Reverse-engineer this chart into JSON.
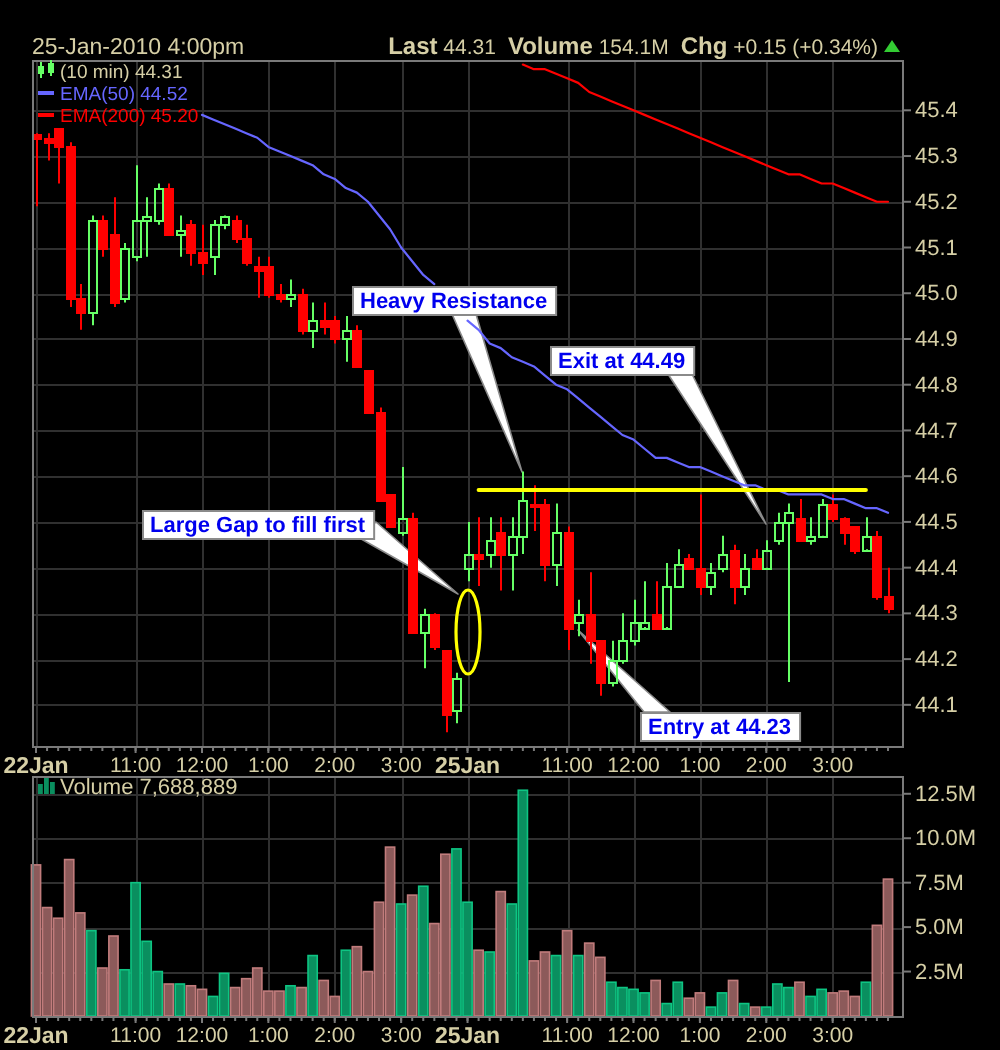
{
  "chart_data": [
    {
      "type": "candlestick",
      "subtitle": "25-Jan-2010 4:00pm",
      "annotations": [
        "Last 44.31",
        "Volume 154.1M",
        "Chg +0.15 (+0.34%)",
        "Heavy Resistance",
        "Exit at 44.49",
        "Large Gap to fill first",
        "Entry at 44.23"
      ],
      "categories": [
        "22Jan",
        null,
        null,
        null,
        null,
        null,
        null,
        null,
        null,
        "11:00",
        null,
        null,
        null,
        null,
        null,
        "12:00",
        null,
        null,
        null,
        null,
        null,
        "1:00",
        null,
        null,
        null,
        null,
        null,
        "2:00",
        null,
        null,
        null,
        null,
        null,
        "3:00",
        null,
        null,
        null,
        null,
        null,
        "25Jan",
        null,
        null,
        null,
        null,
        null,
        null,
        null,
        null,
        "11:00",
        null,
        null,
        null,
        null,
        null,
        "12:00",
        null,
        null,
        null,
        null,
        null,
        "1:00",
        null,
        null,
        null,
        null,
        null,
        "2:00",
        null,
        null,
        null,
        null,
        null,
        "3:00",
        null,
        null,
        null,
        null,
        null
      ],
      "ylim": [
        44.01,
        45.51
      ],
      "yticks": [
        44.1,
        44.2,
        44.3,
        44.4,
        44.5,
        44.6,
        44.7,
        44.8,
        44.9,
        {
          "value": 45,
          "label": "45.0"
        },
        45.1,
        45.2,
        45.3,
        45.4
      ],
      "grid": true,
      "legend": "top left",
      "series": [
        {
          "name": "(10 min) 44.31",
          "ohlc": [
            [
              45.35,
              45.35,
              45.19,
              45.34
            ],
            [
              45.34,
              45.35,
              45.29,
              45.33
            ],
            [
              45.36,
              45.36,
              45.24,
              45.32
            ],
            [
              45.32,
              45.33,
              44.97,
              44.99
            ],
            [
              44.99,
              45.02,
              44.92,
              44.96
            ],
            [
              44.96,
              45.17,
              44.93,
              45.16
            ],
            [
              45.16,
              45.17,
              45.08,
              45.1
            ],
            [
              45.13,
              45.21,
              44.97,
              44.98
            ],
            [
              44.99,
              45.11,
              44.98,
              45.1
            ],
            [
              45.08,
              45.28,
              45.07,
              45.16
            ],
            [
              45.16,
              45.21,
              45.08,
              45.17
            ],
            [
              45.16,
              45.24,
              45.15,
              45.23
            ],
            [
              45.23,
              45.24,
              45.13,
              45.13
            ],
            [
              45.13,
              45.17,
              45.08,
              45.14
            ],
            [
              45.15,
              45.16,
              45.06,
              45.09
            ],
            [
              45.09,
              45.15,
              45.04,
              45.07
            ],
            [
              45.08,
              45.16,
              45.04,
              45.15
            ],
            [
              45.15,
              45.17,
              45.14,
              45.17
            ],
            [
              45.16,
              45.17,
              45.11,
              45.12
            ],
            [
              45.12,
              45.15,
              45.06,
              45.07
            ],
            [
              45.06,
              45.08,
              44.99,
              45.05
            ],
            [
              45.06,
              45.08,
              44.99,
              45.0
            ],
            [
              45.0,
              45.02,
              44.98,
              44.99
            ],
            [
              44.99,
              45.03,
              44.97,
              45.0
            ],
            [
              45.0,
              45.01,
              44.91,
              44.92
            ],
            [
              44.92,
              44.98,
              44.88,
              44.94
            ],
            [
              44.94,
              44.98,
              44.91,
              44.93
            ],
            [
              44.94,
              44.95,
              44.89,
              44.9
            ],
            [
              44.9,
              44.95,
              44.85,
              44.92
            ],
            [
              44.92,
              44.93,
              44.84,
              44.84
            ],
            [
              44.83,
              44.83,
              44.74,
              44.74
            ],
            [
              44.74,
              44.75,
              44.55,
              44.55
            ],
            [
              44.56,
              44.56,
              44.49,
              44.49
            ],
            [
              44.48,
              44.62,
              44.47,
              44.51
            ],
            [
              44.51,
              44.52,
              44.26,
              44.26
            ],
            [
              44.26,
              44.31,
              44.18,
              44.3
            ],
            [
              44.3,
              44.3,
              44.22,
              44.23
            ],
            [
              44.22,
              44.22,
              44.04,
              44.08
            ],
            [
              44.09,
              44.17,
              44.06,
              44.16
            ],
            [
              44.4,
              44.5,
              44.37,
              44.43
            ],
            [
              44.43,
              44.51,
              44.36,
              44.42
            ],
            [
              44.43,
              44.51,
              44.4,
              44.46
            ],
            [
              44.48,
              44.51,
              44.35,
              44.43
            ],
            [
              44.43,
              44.51,
              44.35,
              44.47
            ],
            [
              44.47,
              44.61,
              44.43,
              44.55
            ],
            [
              44.54,
              44.58,
              44.48,
              44.54
            ],
            [
              44.54,
              44.55,
              44.37,
              44.41
            ],
            [
              44.41,
              44.54,
              44.36,
              44.48
            ],
            [
              44.48,
              44.49,
              44.22,
              44.27
            ],
            [
              44.28,
              44.33,
              44.25,
              44.3
            ],
            [
              44.3,
              44.39,
              44.19,
              44.24
            ],
            [
              44.24,
              44.24,
              44.12,
              44.15
            ],
            [
              44.15,
              44.24,
              44.14,
              44.2
            ],
            [
              44.2,
              44.3,
              44.19,
              44.24
            ],
            [
              44.24,
              44.33,
              44.23,
              44.28
            ],
            [
              44.27,
              44.37,
              44.27,
              44.28
            ],
            [
              44.3,
              44.37,
              44.27,
              44.27
            ],
            [
              44.27,
              44.41,
              44.27,
              44.36
            ],
            [
              44.36,
              44.44,
              44.36,
              44.41
            ],
            [
              44.42,
              44.43,
              44.4,
              44.4
            ],
            [
              44.4,
              44.56,
              44.34,
              44.36
            ],
            [
              44.36,
              44.41,
              44.34,
              44.39
            ],
            [
              44.4,
              44.47,
              44.39,
              44.43
            ],
            [
              44.44,
              44.45,
              44.32,
              44.36
            ],
            [
              44.36,
              44.43,
              44.34,
              44.4
            ],
            [
              44.42,
              44.44,
              44.4,
              44.4
            ],
            [
              44.4,
              44.46,
              44.4,
              44.44
            ],
            [
              44.46,
              44.52,
              44.45,
              44.5
            ],
            [
              44.5,
              44.54,
              44.15,
              44.52
            ],
            [
              44.51,
              44.55,
              44.46,
              44.46
            ],
            [
              44.46,
              44.51,
              44.45,
              44.47
            ],
            [
              44.47,
              44.55,
              44.47,
              44.54
            ],
            [
              44.54,
              44.56,
              44.5,
              44.51
            ],
            [
              44.51,
              44.51,
              44.45,
              44.48
            ],
            [
              44.49,
              44.49,
              44.43,
              44.44
            ],
            [
              44.44,
              44.51,
              44.44,
              44.47
            ],
            [
              44.47,
              44.48,
              44.33,
              44.34
            ],
            [
              44.34,
              44.4,
              44.3,
              44.31
            ]
          ],
          "colors": [
            "#ff0000",
            "#ff0000",
            "#ff0000",
            "#ff0000",
            "#ff0000",
            "#66ff66",
            "#ff0000",
            "#ff0000",
            "#66ff66",
            "#66ff66",
            "#66ff66",
            "#66ff66",
            "#ff0000",
            "#66ff66",
            "#ff0000",
            "#ff0000",
            "#66ff66",
            "#66ff66",
            "#ff0000",
            "#ff0000",
            "#ff0000",
            "#ff0000",
            "#ff0000",
            "#66ff66",
            "#ff0000",
            "#66ff66",
            "#ff0000",
            "#ff0000",
            "#66ff66",
            "#ff0000",
            "#ff0000",
            "#ff0000",
            "#ff0000",
            "#66ff66",
            "#ff0000",
            "#66ff66",
            "#ff0000",
            "#ff0000",
            "#66ff66",
            "#66ff66",
            "#ff0000",
            "#66ff66",
            "#ff0000",
            "#66ff66",
            "#66ff66",
            "#ff0000",
            "#ff0000",
            "#66ff66",
            "#ff0000",
            "#66ff66",
            "#ff0000",
            "#ff0000",
            "#66ff66",
            "#66ff66",
            "#66ff66",
            "#66ff66",
            "#ff0000",
            "#66ff66",
            "#66ff66",
            "#ff0000",
            "#ff0000",
            "#66ff66",
            "#66ff66",
            "#ff0000",
            "#66ff66",
            "#ff0000",
            "#66ff66",
            "#66ff66",
            "#66ff66",
            "#ff0000",
            "#66ff66",
            "#66ff66",
            "#ff0000",
            "#ff0000",
            "#ff0000",
            "#66ff66",
            "#ff0000",
            "#ff0000"
          ]
        },
        {
          "type": "line",
          "name": "EMA(50) 44.52",
          "color": "#6666ff",
          "values": [
            null,
            null,
            null,
            null,
            null,
            null,
            null,
            null,
            null,
            null,
            null,
            null,
            null,
            null,
            null,
            45.39,
            45.38,
            45.37,
            45.36,
            45.35,
            45.34,
            45.32,
            45.31,
            45.3,
            45.29,
            45.28,
            45.26,
            45.25,
            45.23,
            45.22,
            45.2,
            45.17,
            45.14,
            45.1,
            45.07,
            45.04,
            45.02,
            null,
            null,
            44.94,
            44.92,
            44.89,
            44.88,
            44.86,
            44.85,
            44.84,
            44.82,
            44.8,
            44.79,
            44.77,
            44.75,
            44.73,
            44.71,
            44.69,
            44.68,
            44.66,
            44.64,
            44.64,
            44.63,
            44.62,
            44.62,
            44.61,
            44.6,
            44.59,
            44.58,
            44.58,
            44.57,
            44.57,
            44.56,
            44.56,
            44.56,
            44.56,
            44.55,
            44.55,
            44.54,
            44.53,
            44.53,
            44.52
          ]
        },
        {
          "type": "line",
          "name": "EMA(200) 45.20",
          "color": "#ff0000",
          "values": [
            null,
            null,
            null,
            null,
            null,
            null,
            null,
            null,
            null,
            null,
            null,
            null,
            null,
            null,
            null,
            null,
            null,
            null,
            null,
            null,
            null,
            null,
            null,
            null,
            null,
            null,
            null,
            null,
            null,
            null,
            null,
            null,
            null,
            null,
            null,
            null,
            null,
            null,
            null,
            null,
            null,
            null,
            null,
            null,
            45.5,
            45.49,
            45.49,
            45.48,
            45.47,
            45.46,
            45.44,
            45.43,
            45.42,
            45.41,
            45.4,
            45.39,
            45.38,
            45.37,
            45.36,
            45.35,
            45.34,
            45.33,
            45.32,
            45.31,
            45.3,
            45.29,
            45.28,
            45.27,
            45.26,
            45.26,
            45.25,
            45.24,
            45.24,
            45.23,
            45.22,
            45.21,
            45.2,
            45.2
          ]
        },
        {
          "type": "line",
          "color": "#ffff00",
          "values": [
            null,
            null,
            null,
            null,
            null,
            null,
            null,
            null,
            null,
            null,
            null,
            null,
            null,
            null,
            null,
            null,
            null,
            null,
            null,
            null,
            null,
            null,
            null,
            null,
            null,
            null,
            null,
            null,
            null,
            null,
            null,
            null,
            null,
            null,
            null,
            null,
            null,
            null,
            null,
            null,
            44.57,
            44.57,
            44.57,
            44.57,
            44.57,
            44.57,
            44.57,
            44.57,
            44.57,
            44.57,
            44.57,
            44.57,
            44.57,
            44.57,
            44.57,
            44.57,
            44.57,
            44.57,
            44.57,
            44.57,
            44.57,
            44.57,
            44.57,
            44.57,
            44.57,
            44.57,
            44.57,
            44.57,
            44.57,
            44.57,
            44.57,
            44.57,
            44.57,
            44.57,
            44.57,
            44.57,
            null,
            null
          ]
        }
      ]
    },
    {
      "type": "bar",
      "categories": [
        "22Jan",
        null,
        null,
        null,
        null,
        null,
        null,
        null,
        null,
        "11:00",
        null,
        null,
        null,
        null,
        null,
        "12:00",
        null,
        null,
        null,
        null,
        null,
        "1:00",
        null,
        null,
        null,
        null,
        null,
        "2:00",
        null,
        null,
        null,
        null,
        null,
        "3:00",
        null,
        null,
        null,
        null,
        null,
        "25Jan",
        null,
        null,
        null,
        null,
        null,
        null,
        null,
        null,
        "11:00",
        null,
        null,
        null,
        null,
        null,
        "12:00",
        null,
        null,
        null,
        null,
        null,
        "1:00",
        null,
        null,
        null,
        null,
        null,
        "2:00",
        null,
        null,
        null,
        null,
        null,
        "3:00",
        null,
        null,
        null,
        null,
        null
      ],
      "ylim": [
        0,
        13.5
      ],
      "yticks": [
        {
          "value": 2.5,
          "label": "2.5M"
        },
        {
          "value": 5,
          "label": "5.0M"
        },
        {
          "value": 7.5,
          "label": "7.5M"
        },
        {
          "value": 10,
          "label": "10.0M"
        },
        {
          "value": 12.5,
          "label": "12.5M"
        }
      ],
      "grid": true,
      "legend": "top left",
      "series": [
        {
          "name": "Volume 7,688,889",
          "values": [
            8.5,
            6.1,
            5.5,
            8.8,
            5.8,
            4.8,
            2.7,
            4.5,
            2.6,
            7.5,
            4.2,
            2.5,
            1.8,
            1.8,
            1.7,
            1.5,
            1.1,
            2.4,
            1.6,
            2.1,
            2.7,
            1.4,
            1.4,
            1.7,
            1.6,
            3.4,
            2.0,
            1.1,
            3.7,
            3.9,
            2.5,
            6.4,
            9.5,
            6.3,
            6.8,
            7.3,
            5.2,
            9.1,
            9.4,
            6.4,
            3.7,
            3.6,
            7.0,
            6.3,
            12.7,
            3.1,
            3.6,
            3.4,
            4.8,
            3.4,
            4.1,
            3.3,
            1.9,
            1.6,
            1.5,
            1.3,
            2.0,
            0.7,
            1.9,
            1.0,
            1.3,
            0.5,
            1.3,
            2.0,
            0.7,
            0.5,
            0.5,
            1.8,
            1.6,
            1.9,
            1.1,
            1.5,
            1.3,
            1.4,
            1.1,
            1.9,
            5.1,
            7.7
          ],
          "colors": [
            "#8c5a5a",
            "#8c5a5a",
            "#8c5a5a",
            "#8c5a5a",
            "#8c5a5a",
            "#0a8f5f",
            "#8c5a5a",
            "#8c5a5a",
            "#0a8f5f",
            "#0a8f5f",
            "#0a8f5f",
            "#0a8f5f",
            "#8c5a5a",
            "#0a8f5f",
            "#8c5a5a",
            "#8c5a5a",
            "#0a8f5f",
            "#0a8f5f",
            "#8c5a5a",
            "#8c5a5a",
            "#8c5a5a",
            "#8c5a5a",
            "#8c5a5a",
            "#0a8f5f",
            "#8c5a5a",
            "#0a8f5f",
            "#8c5a5a",
            "#8c5a5a",
            "#0a8f5f",
            "#8c5a5a",
            "#8c5a5a",
            "#8c5a5a",
            "#8c5a5a",
            "#0a8f5f",
            "#8c5a5a",
            "#0a8f5f",
            "#8c5a5a",
            "#8c5a5a",
            "#0a8f5f",
            "#0a8f5f",
            "#8c5a5a",
            "#0a8f5f",
            "#8c5a5a",
            "#0a8f5f",
            "#0a8f5f",
            "#8c5a5a",
            "#8c5a5a",
            "#0a8f5f",
            "#8c5a5a",
            "#0a8f5f",
            "#8c5a5a",
            "#8c5a5a",
            "#0a8f5f",
            "#0a8f5f",
            "#0a8f5f",
            "#0a8f5f",
            "#8c5a5a",
            "#0a8f5f",
            "#0a8f5f",
            "#8c5a5a",
            "#8c5a5a",
            "#0a8f5f",
            "#0a8f5f",
            "#8c5a5a",
            "#0a8f5f",
            "#8c5a5a",
            "#0a8f5f",
            "#0a8f5f",
            "#0a8f5f",
            "#8c5a5a",
            "#0a8f5f",
            "#0a8f5f",
            "#8c5a5a",
            "#8c5a5a",
            "#8c5a5a",
            "#0a8f5f",
            "#8c5a5a",
            "#8c5a5a"
          ]
        }
      ]
    }
  ]
}
